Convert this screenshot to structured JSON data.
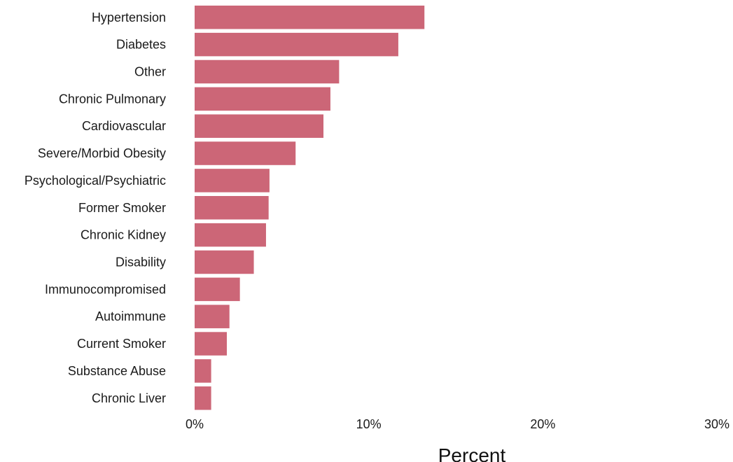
{
  "chart_data": {
    "type": "bar",
    "orientation": "horizontal",
    "categories": [
      "Hypertension",
      "Diabetes",
      "Other",
      "Chronic Pulmonary",
      "Cardiovascular",
      "Severe/Morbid Obesity",
      "Psychological/Psychiatric",
      "Former Smoker",
      "Chronic Kidney",
      "Disability",
      "Immunocompromised",
      "Autoimmune",
      "Current Smoker",
      "Substance Abuse",
      "Chronic Liver"
    ],
    "values": [
      13.2,
      11.7,
      8.3,
      7.8,
      7.4,
      5.8,
      4.3,
      4.25,
      4.1,
      3.4,
      2.6,
      2.0,
      1.85,
      0.95,
      0.95
    ],
    "unit": "%",
    "xlabel": "Percent",
    "ylabel": "",
    "xlim": [
      0,
      30
    ],
    "xticks": [
      "0%",
      "10%",
      "20%",
      "30%"
    ],
    "grid": false,
    "bar_color": "#cc6677"
  }
}
